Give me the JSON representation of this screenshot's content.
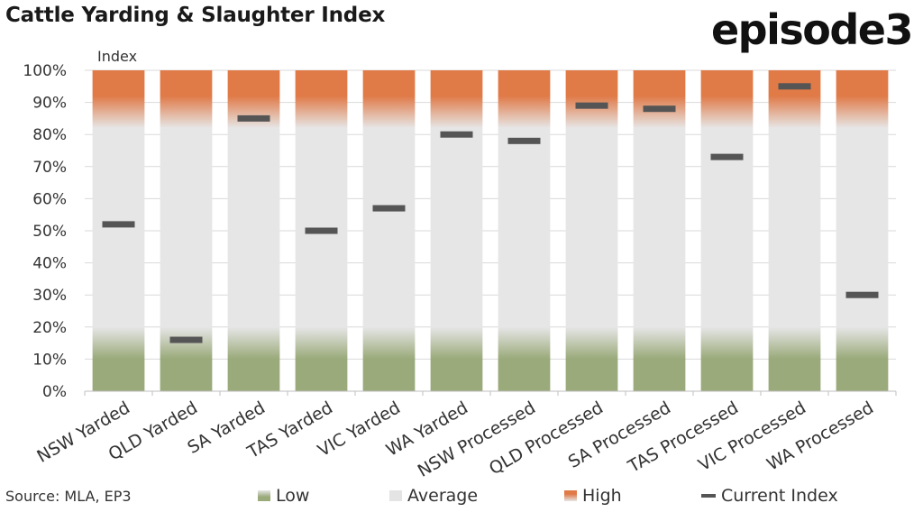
{
  "header": {
    "title": "Cattle Yarding & Slaughter Index",
    "brand": "episode3"
  },
  "footer": {
    "source": "Source: MLA, EP3"
  },
  "legend": {
    "low": "Low",
    "average": "Average",
    "high": "High",
    "current": "Current Index"
  },
  "colors": {
    "low": "#9aaa7a",
    "average": "#e4e4e4",
    "high": "#e07a47",
    "current": "#555555"
  },
  "chart_data": {
    "type": "bar",
    "title": "Cattle Yarding & Slaughter Index",
    "ylabel": "Index",
    "xlabel": "",
    "ylim": [
      0,
      100
    ],
    "y_ticks": [
      "0%",
      "10%",
      "20%",
      "30%",
      "40%",
      "50%",
      "60%",
      "70%",
      "80%",
      "90%",
      "100%"
    ],
    "categories": [
      "NSW Yarded",
      "QLD Yarded",
      "SA Yarded",
      "TAS Yarded",
      "VIC Yarded",
      "WA Yarded",
      "NSW Processed",
      "QLD Processed",
      "SA Processed",
      "TAS Processed",
      "VIC Processed",
      "WA Processed"
    ],
    "bands": {
      "low": [
        0,
        20
      ],
      "average": [
        20,
        80
      ],
      "high": [
        80,
        100
      ]
    },
    "series": [
      {
        "name": "Current Index",
        "values": [
          52,
          16,
          85,
          50,
          57,
          80,
          78,
          89,
          88,
          73,
          95,
          30
        ]
      }
    ],
    "grid": true,
    "legend_position": "bottom"
  }
}
